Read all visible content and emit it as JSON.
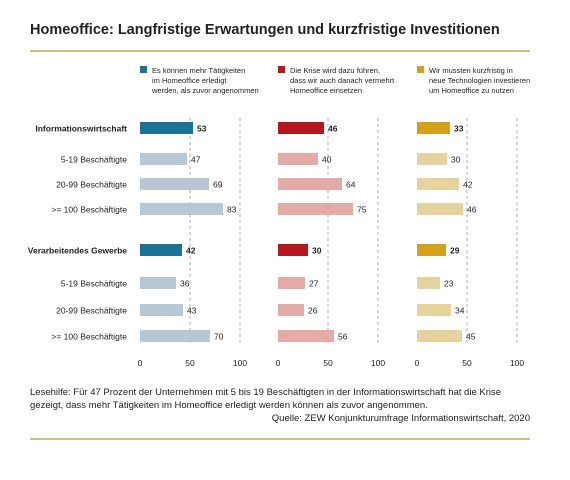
{
  "title": "Homeoffice: Langfristige Erwartungen und kurzfristige Investitionen",
  "note": "Lesehilfe: Für 47 Prozent der Unternehmen mit 5 bis 19 Beschäftigten in der Informationswirtschaft hat die Krise gezeigt, dass mehr Tätigkeiten im Homeoffice erledigt werden können als zuvor angenommen.",
  "source": "Quelle: ZEW Konjunkturumfrage Informationswirtschaft, 2020",
  "chart_data": {
    "type": "bar",
    "orientation": "horizontal",
    "categories": [
      "Informationswirtschaft",
      "5-19 Beschäftigte",
      "20-99 Beschäftigte",
      ">= 100 Beschäftigte",
      "Verarbeitendes Gewerbe",
      "5-19 Beschäftigte",
      "20-99 Beschäftigte",
      ">= 100 Beschäftigte"
    ],
    "bold_categories": [
      0,
      4
    ],
    "xlim": [
      0,
      100
    ],
    "xticks": [
      0,
      50,
      100
    ],
    "grid": true,
    "legend_position": "top",
    "series": [
      {
        "name": "Es können mehr Tätigkeiten im Homeoffice erledigt werden, als zuvor angenommen",
        "legend_lines": [
          "Es können mehr Tätigkeiten",
          "im Homeoffice erledigt",
          "werden, als zuvor angenommen"
        ],
        "values": [
          53,
          47,
          69,
          83,
          42,
          36,
          43,
          70
        ],
        "color": "#1a7394",
        "light_color": "#b7c8d4"
      },
      {
        "name": "Die Krise wird dazu führen, dass wir auch danach vermehrt Homeoffice einsetzen",
        "legend_lines": [
          "Die Krise wird dazu führen,",
          "dass wir auch danach vermehrt",
          "Homeoffice einsetzen"
        ],
        "values": [
          46,
          40,
          64,
          75,
          30,
          27,
          26,
          56
        ],
        "color": "#b5171f",
        "light_color": "#e4aaa6"
      },
      {
        "name": "Wir mussten kurzfristig in neue Technologien investieren um Homeoffice zu nutzen",
        "legend_lines": [
          "Wir mussten kurzfristig in",
          "neue Technologien investieren",
          "um Homeoffice zu nutzen"
        ],
        "values": [
          33,
          30,
          42,
          46,
          29,
          23,
          34,
          45
        ],
        "color": "#d4a21a",
        "light_color": "#e6d29c"
      }
    ]
  }
}
